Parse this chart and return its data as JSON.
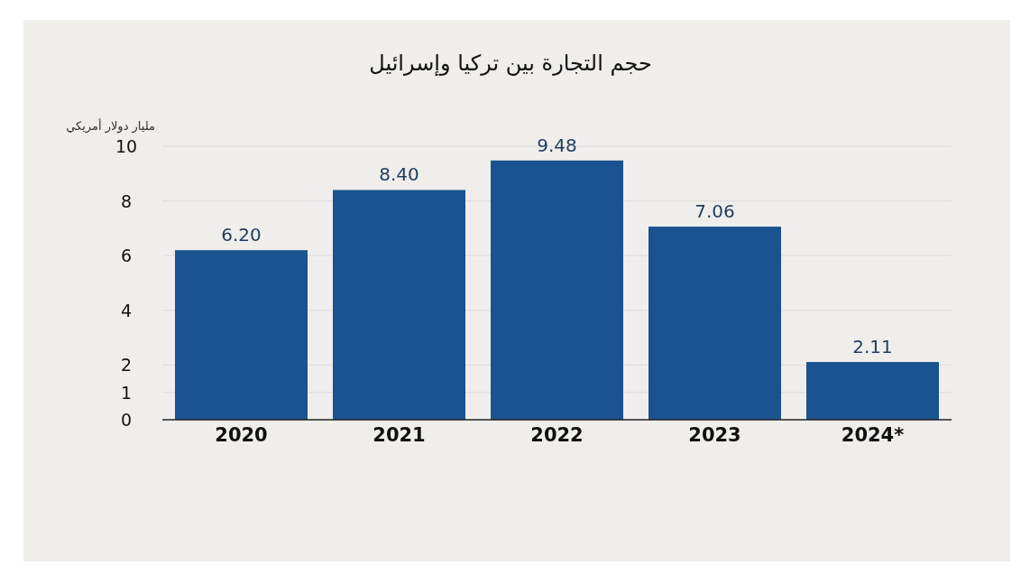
{
  "chart_data": {
    "type": "bar",
    "title": "حجم التجارة بين تركيا وإسرائيل",
    "ylabel": "مليار دولار أمريكي",
    "categories": [
      "2020",
      "2021",
      "2022",
      "2023",
      "2024*"
    ],
    "values": [
      6.2,
      8.4,
      9.48,
      7.06,
      2.11
    ],
    "value_labels": [
      "6.20",
      "8.40",
      "9.48",
      "7.06",
      "2.11"
    ],
    "color": "#1a5390",
    "ylim": [
      0,
      10
    ],
    "yticks": [
      0,
      1,
      2,
      4,
      6,
      8,
      10
    ],
    "grid": "y"
  }
}
